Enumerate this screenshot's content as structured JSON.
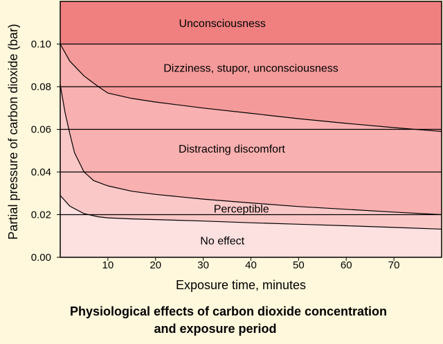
{
  "chart_data": {
    "type": "area",
    "title": [
      "Physiological effects of carbon dioxide concentration",
      "and exposure period"
    ],
    "xlabel": "Exposure time,  minutes",
    "ylabel": "Partial pressure of carbon dioxide (bar)",
    "xlim": [
      0,
      80
    ],
    "ylim": [
      0,
      0.12
    ],
    "xticks": [
      10,
      20,
      30,
      40,
      50,
      60,
      70
    ],
    "xtick_labels": [
      "10",
      "20",
      "30",
      "40",
      "50",
      "60",
      "70"
    ],
    "yticks": [
      0,
      0.02,
      0.04,
      0.06,
      0.08,
      0.1
    ],
    "ytick_labels": [
      "0.00",
      "0.02",
      "0.04",
      "0.06",
      "0.08",
      "0.10"
    ],
    "grid": "horizontal",
    "zones": [
      {
        "label": "No effect",
        "color": "#fde0e0",
        "label_at": [
          34,
          0.008
        ]
      },
      {
        "label": "Perceptible",
        "color": "#fbc8c8",
        "label_at": [
          38,
          0.023
        ]
      },
      {
        "label": "Distracting discomfort",
        "color": "#f9b0b0",
        "label_at": [
          36,
          0.051
        ]
      },
      {
        "label": "Dizziness, stupor, unconsciousness",
        "color": "#f59a9a",
        "label_at": [
          40,
          0.089
        ]
      },
      {
        "label": "Unconsciousness",
        "color": "#f08080",
        "label_at": [
          34,
          0.11
        ]
      }
    ],
    "boundaries": [
      {
        "x": [
          0,
          2,
          5,
          8,
          10,
          15,
          20,
          30,
          40,
          50,
          60,
          70,
          80
        ],
        "y": [
          0.029,
          0.024,
          0.0205,
          0.019,
          0.0185,
          0.018,
          0.0177,
          0.017,
          0.0162,
          0.0155,
          0.0148,
          0.014,
          0.0132
        ]
      },
      {
        "x": [
          0,
          1,
          2,
          3,
          5,
          7,
          10,
          15,
          20,
          30,
          40,
          50,
          60,
          70,
          80
        ],
        "y": [
          0.081,
          0.068,
          0.058,
          0.049,
          0.04,
          0.036,
          0.0335,
          0.031,
          0.0295,
          0.0273,
          0.0255,
          0.0238,
          0.0225,
          0.0212,
          0.02
        ]
      },
      {
        "x": [
          0,
          2,
          5,
          8,
          10,
          15,
          20,
          30,
          40,
          50,
          60,
          70,
          80
        ],
        "y": [
          0.1,
          0.092,
          0.085,
          0.08,
          0.077,
          0.0745,
          0.0728,
          0.07,
          0.0675,
          0.065,
          0.0628,
          0.0608,
          0.059
        ]
      }
    ],
    "colors": {
      "background": "#fff8dc",
      "gridline": "#000000",
      "curve": "#000000"
    }
  }
}
